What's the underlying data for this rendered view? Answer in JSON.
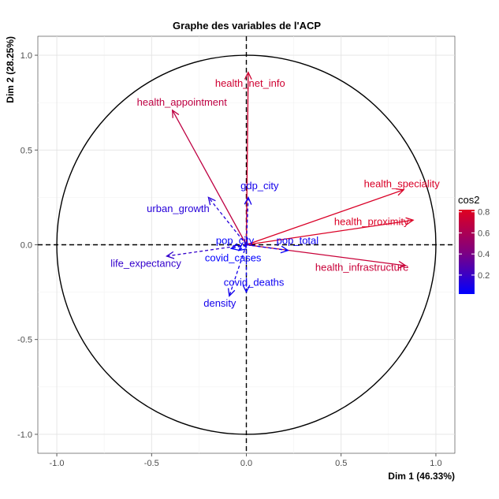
{
  "chart_data": {
    "type": "scatter",
    "subtype": "pca-correlation-circle",
    "title": "Graphe des variables de l'ACP",
    "xlabel": "Dim 1 (46.33%)",
    "ylabel": "Dim 2 (28.25%)",
    "xlim": [
      -1.1,
      1.1
    ],
    "ylim": [
      -1.1,
      1.1
    ],
    "x_ticks": [
      -1.0,
      -0.5,
      0.0,
      0.5,
      1.0
    ],
    "x_tick_labels": [
      "-1.0",
      "-0.5",
      "0.0",
      "0.5",
      "1.0"
    ],
    "y_ticks": [
      -1.0,
      -0.5,
      0.0,
      0.5,
      1.0
    ],
    "y_tick_labels": [
      "-1.0",
      "-0.5",
      "0.0",
      "0.5",
      "1.0"
    ],
    "grid": true,
    "legend": {
      "title": "cos2",
      "placement": "right",
      "range": [
        0.02,
        0.82
      ],
      "ticks": [
        0.2,
        0.4,
        0.6,
        0.8
      ],
      "tick_labels": [
        "0.2",
        "0.4",
        "0.6",
        "0.8"
      ],
      "low_color": "#0000FF",
      "mid_color": "#800080",
      "high_color": "#E00020"
    },
    "variables": [
      {
        "name": "health_net_info",
        "x": 0.01,
        "y": 0.91,
        "cos2": 0.75,
        "line": "solid",
        "label_x": 0.02,
        "label_y": 0.85
      },
      {
        "name": "health_appointment",
        "x": -0.39,
        "y": 0.71,
        "cos2": 0.68,
        "line": "solid",
        "label_x": -0.34,
        "label_y": 0.75
      },
      {
        "name": "health_speciality",
        "x": 0.83,
        "y": 0.29,
        "cos2": 0.79,
        "line": "solid",
        "label_x": 0.82,
        "label_y": 0.32
      },
      {
        "name": "health_proximity",
        "x": 0.88,
        "y": 0.13,
        "cos2": 0.8,
        "line": "solid",
        "label_x": 0.66,
        "label_y": 0.12
      },
      {
        "name": "health_infrastructure",
        "x": 0.84,
        "y": -0.11,
        "cos2": 0.72,
        "line": "solid",
        "label_x": 0.61,
        "label_y": -0.12
      },
      {
        "name": "gdp_city",
        "x": 0.01,
        "y": 0.25,
        "cos2": 0.08,
        "line": "dashed",
        "label_x": 0.07,
        "label_y": 0.31
      },
      {
        "name": "urban_growth",
        "x": -0.2,
        "y": 0.25,
        "cos2": 0.14,
        "line": "dashed",
        "label_x": -0.36,
        "label_y": 0.19
      },
      {
        "name": "pop_city",
        "x": -0.08,
        "y": -0.02,
        "cos2": 0.03,
        "line": "dashed",
        "label_x": -0.06,
        "label_y": 0.02
      },
      {
        "name": "pop_total",
        "x": 0.22,
        "y": -0.03,
        "cos2": 0.05,
        "line": "dashed",
        "label_x": 0.27,
        "label_y": 0.02
      },
      {
        "name": "covid_cases",
        "x": -0.04,
        "y": -0.03,
        "cos2": 0.02,
        "line": "dashed",
        "label_x": -0.07,
        "label_y": -0.07
      },
      {
        "name": "life_expectancy",
        "x": -0.42,
        "y": -0.06,
        "cos2": 0.18,
        "line": "dashed",
        "label_x": -0.53,
        "label_y": -0.1
      },
      {
        "name": "covid_deaths",
        "x": 0.0,
        "y": -0.25,
        "cos2": 0.06,
        "line": "dashed",
        "label_x": 0.04,
        "label_y": -0.2
      },
      {
        "name": "density",
        "x": -0.09,
        "y": -0.27,
        "cos2": 0.08,
        "line": "dashed",
        "label_x": -0.14,
        "label_y": -0.31
      }
    ]
  }
}
